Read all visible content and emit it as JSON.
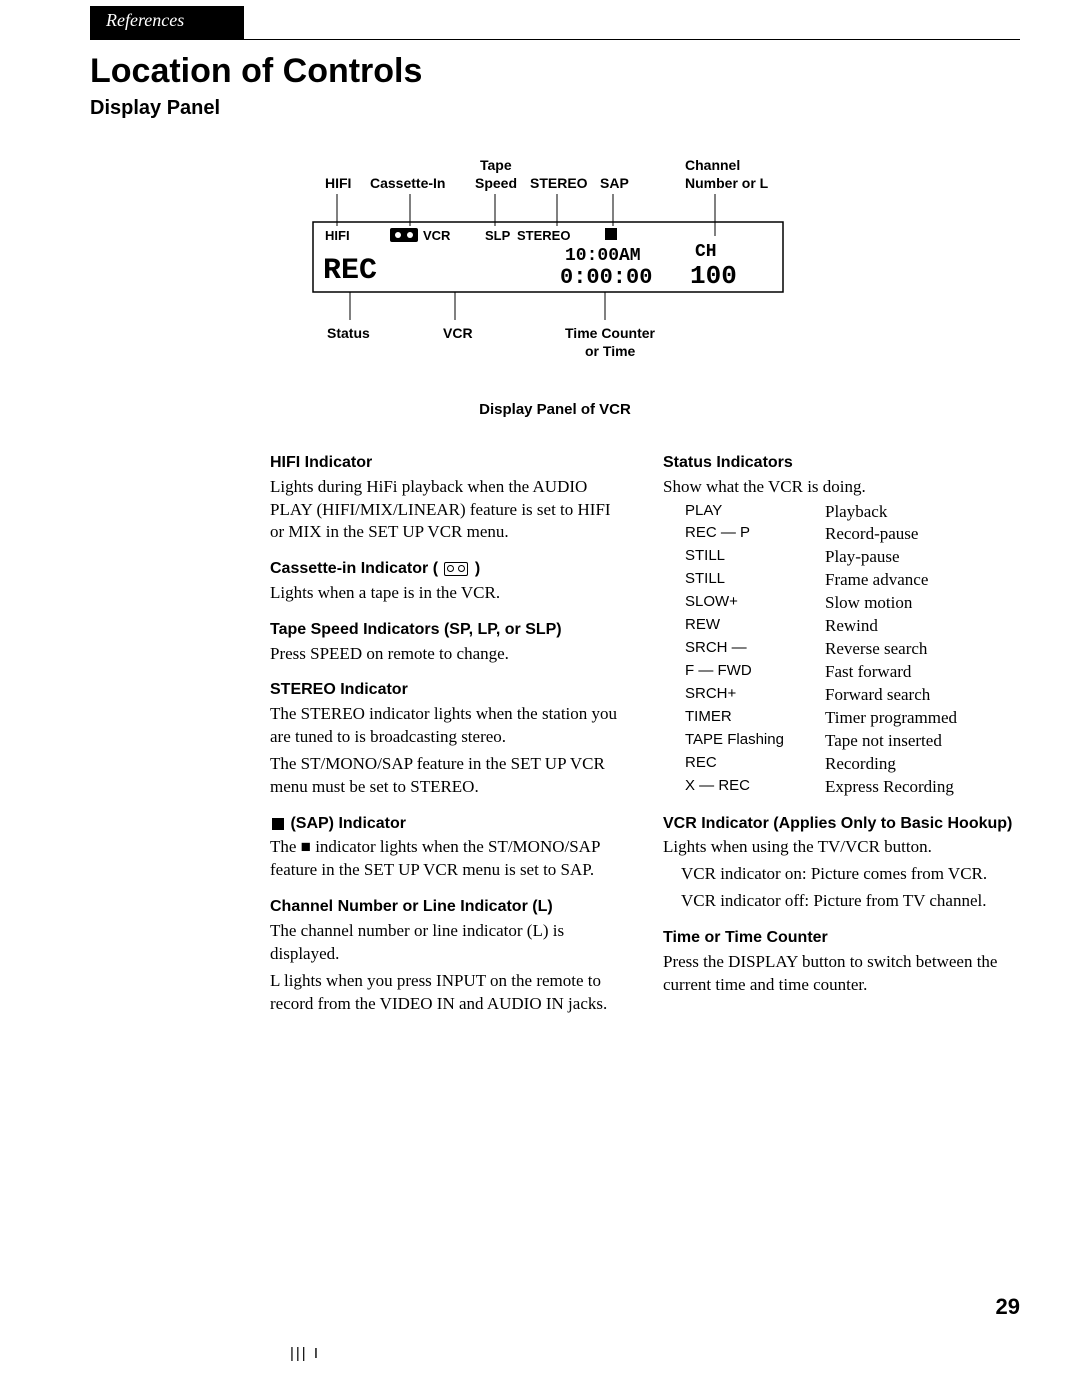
{
  "header": {
    "tab": "References",
    "title": "Location of Controls",
    "subtitle": "Display Panel"
  },
  "diagram": {
    "caption": "Display Panel of VCR",
    "top_labels": {
      "hifi": "HIFI",
      "cassette": "Cassette-In",
      "tape_speed_l1": "Tape",
      "tape_speed_l2": "Speed",
      "stereo": "STEREO",
      "sap": "SAP",
      "channel_l1": "Channel",
      "channel_l2": "Number or L"
    },
    "panel": {
      "hifi": "HIFI",
      "vcr": "VCR",
      "slp": "SLP",
      "stereo": "STEREO",
      "status_seg": "REC",
      "time_seg_top": "10:00AM",
      "time_seg_bot": "0:00:00",
      "chan_seg": "CH\n100"
    },
    "bottom_labels": {
      "status": "Status",
      "vcr": "VCR",
      "time_l1": "Time Counter",
      "time_l2": "or Time"
    }
  },
  "left": {
    "hifi_head": "HIFI Indicator",
    "hifi_body": "Lights during HiFi playback when the AUDIO PLAY (HIFI/MIX/LINEAR) feature is set to HIFI or MIX in the SET UP VCR menu.",
    "cassette_head_prefix": "Cassette-in Indicator ( ",
    "cassette_head_suffix": " )",
    "cassette_body": "Lights when a tape is in the VCR.",
    "tape_head": "Tape Speed Indicators (SP, LP, or SLP)",
    "tape_body": "Press SPEED on remote to change.",
    "stereo_head": "STEREO Indicator",
    "stereo_body1": "The STEREO indicator lights when the station you are tuned to is broadcasting stereo.",
    "stereo_body2": "The ST/MONO/SAP feature in the SET UP VCR menu must be set to STEREO.",
    "sap_head": " (SAP) Indicator",
    "sap_body": "The ■ indicator lights when the ST/MONO/SAP feature in the SET UP VCR menu is set to SAP.",
    "chan_head": "Channel Number or Line Indicator (L)",
    "chan_body1": "The channel number or line indicator (L) is displayed.",
    "chan_body2": "L lights when you press INPUT on the remote to record from the VIDEO IN and AUDIO IN jacks."
  },
  "right": {
    "status_head": "Status Indicators",
    "status_intro": "Show what the VCR is doing.",
    "status_list": [
      {
        "code": "PLAY",
        "desc": "Playback"
      },
      {
        "code": "REC — P",
        "desc": "Record-pause"
      },
      {
        "code": "STILL",
        "desc": "Play-pause"
      },
      {
        "code": "STILL",
        "desc": "Frame advance"
      },
      {
        "code": "SLOW+",
        "desc": "Slow motion"
      },
      {
        "code": "REW",
        "desc": "Rewind"
      },
      {
        "code": "SRCH —",
        "desc": "Reverse search"
      },
      {
        "code": "F — FWD",
        "desc": "Fast forward"
      },
      {
        "code": "SRCH+",
        "desc": "Forward search"
      },
      {
        "code": "TIMER",
        "desc": "Timer programmed"
      },
      {
        "code": "TAPE Flashing",
        "desc": "Tape not inserted"
      },
      {
        "code": "REC",
        "desc": "Recording"
      },
      {
        "code": "X — REC",
        "desc": "Express Recording"
      }
    ],
    "vcr_head": "VCR Indicator (Applies Only to Basic Hookup)",
    "vcr_body1": "Lights when using the TV/VCR button.",
    "vcr_body2": "VCR indicator on: Picture comes from VCR.",
    "vcr_body3": "VCR indicator off: Picture from TV channel.",
    "time_head": "Time or Time Counter",
    "time_body": "Press the DISPLAY button to switch between the current time and time counter."
  },
  "page_number": "29",
  "footer_marks": "|||        I"
}
